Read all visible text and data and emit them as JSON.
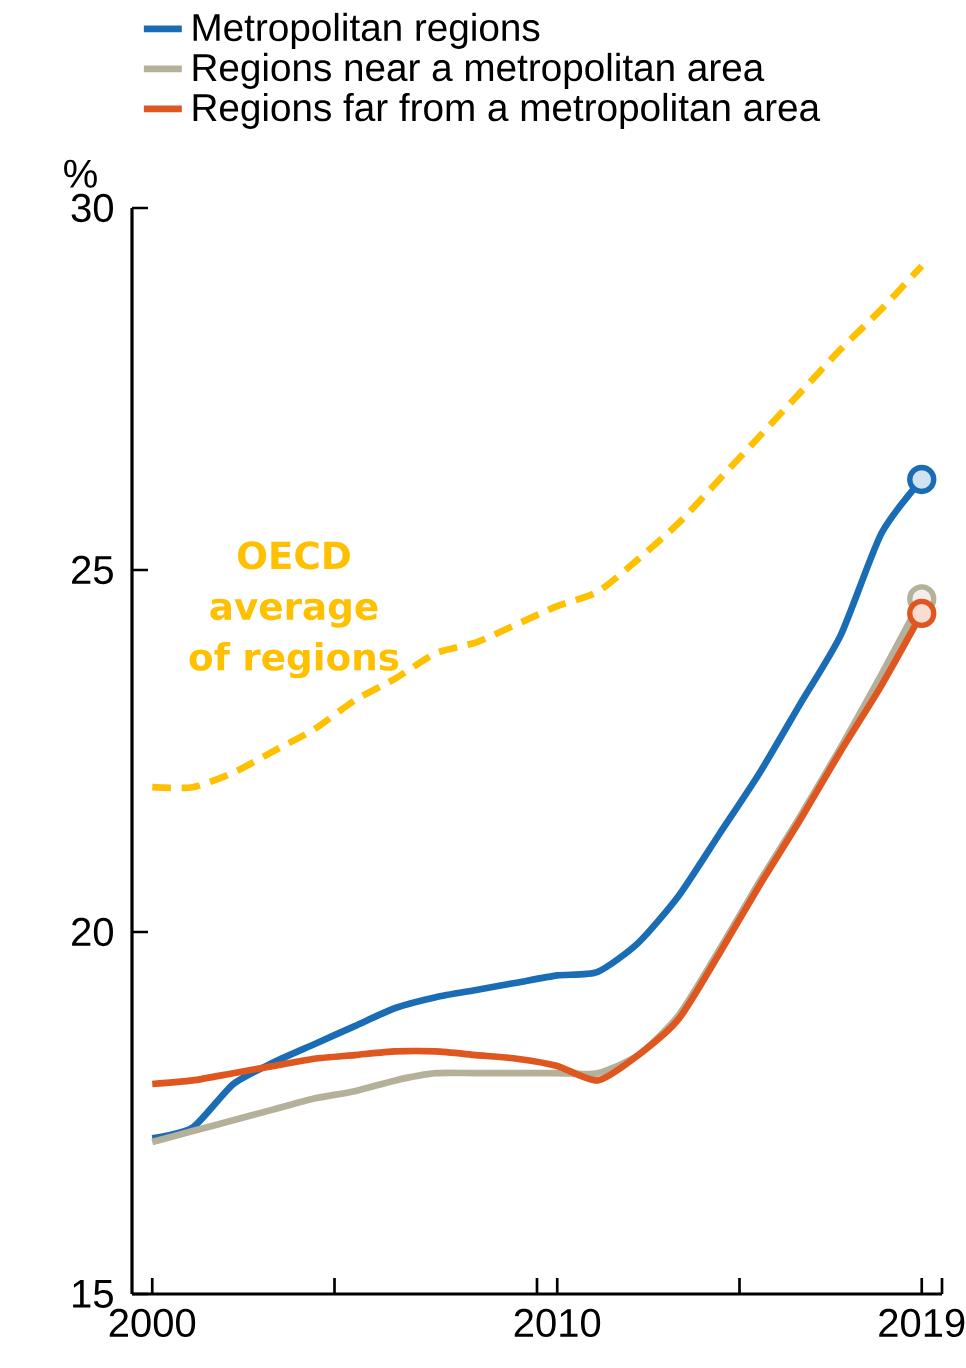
{
  "chart_data": {
    "type": "line",
    "ylabel": "%",
    "x": [
      2000,
      2001,
      2002,
      2003,
      2004,
      2005,
      2006,
      2007,
      2008,
      2009,
      2010,
      2011,
      2012,
      2013,
      2014,
      2015,
      2016,
      2017,
      2018,
      2019
    ],
    "xlim": [
      1999.5,
      2019.5
    ],
    "ylim": [
      15,
      30
    ],
    "xticks": [
      2000,
      {
        "value": 2004.5,
        "label": null
      },
      {
        "value": 2009.5,
        "label": null
      },
      2010,
      {
        "value": 2014.5,
        "label": null
      },
      2019,
      {
        "value": 2019.5,
        "label": null
      }
    ],
    "yticks": [
      15,
      20,
      25,
      30
    ],
    "legend": "top",
    "grid": false,
    "annotations": [
      "OECD average of regions"
    ],
    "series": [
      {
        "name": "Metropolitan regions",
        "color": "#1a6db5",
        "values": [
          17.15,
          17.3,
          17.9,
          18.2,
          18.45,
          18.7,
          18.95,
          19.1,
          19.2,
          19.3,
          19.4,
          19.45,
          19.85,
          20.5,
          21.35,
          22.2,
          23.15,
          24.1,
          25.5,
          26.25
        ]
      },
      {
        "name": "Regions near a metropolitan area",
        "color": "#b5b09a",
        "values": [
          17.1,
          17.25,
          17.4,
          17.55,
          17.7,
          17.8,
          17.95,
          18.05,
          18.05,
          18.05,
          18.05,
          18.05,
          18.3,
          18.85,
          19.75,
          20.7,
          21.6,
          22.55,
          23.55,
          24.6
        ]
      },
      {
        "name": "Regions far from a metropolitan area",
        "color": "#e0561f",
        "values": [
          17.9,
          17.95,
          18.05,
          18.15,
          18.25,
          18.3,
          18.35,
          18.35,
          18.3,
          18.25,
          18.15,
          17.95,
          18.3,
          18.8,
          19.7,
          20.65,
          21.55,
          22.5,
          23.4,
          24.4
        ]
      },
      {
        "color": "#ffc000",
        "line_style": "dashed",
        "marker": "none",
        "values": [
          22.0,
          22.0,
          22.2,
          22.5,
          22.8,
          23.2,
          23.5,
          23.85,
          24.0,
          24.25,
          24.5,
          24.7,
          25.15,
          25.65,
          26.25,
          26.85,
          27.45,
          28.05,
          28.6,
          29.2
        ]
      },
      {
        "type": "scatter",
        "color": "#1a6db5",
        "marker": "circle",
        "values": [
          null,
          null,
          null,
          null,
          null,
          null,
          null,
          null,
          null,
          null,
          null,
          null,
          null,
          null,
          null,
          null,
          null,
          null,
          null,
          26.25
        ]
      },
      {
        "type": "scatter",
        "color": "#b5b09a",
        "marker": "circle",
        "values": [
          null,
          null,
          null,
          null,
          null,
          null,
          null,
          null,
          null,
          null,
          null,
          null,
          null,
          null,
          null,
          null,
          null,
          null,
          null,
          24.6
        ]
      },
      {
        "type": "scatter",
        "color": "#e0561f",
        "marker": "circle",
        "values": [
          null,
          null,
          null,
          null,
          null,
          null,
          null,
          null,
          null,
          null,
          null,
          null,
          null,
          null,
          null,
          null,
          null,
          null,
          null,
          24.4
        ]
      }
    ]
  }
}
